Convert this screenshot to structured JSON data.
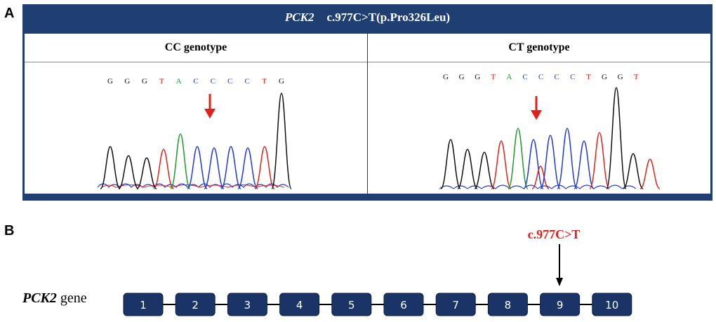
{
  "panel_a": {
    "letter": "A",
    "title_gene": "PCK2",
    "title_variant": "c.977C>T(p.Pro326Leu)",
    "left": {
      "header": "CC  genotype",
      "bases": [
        {
          "b": "G",
          "c": "#111111"
        },
        {
          "b": "G",
          "c": "#111111"
        },
        {
          "b": "G",
          "c": "#111111"
        },
        {
          "b": "T",
          "c": "#d9261c"
        },
        {
          "b": "A",
          "c": "#1e9a2d"
        },
        {
          "b": "C",
          "c": "#2339d0"
        },
        {
          "b": "C",
          "c": "#2339d0"
        },
        {
          "b": "C",
          "c": "#2339d0"
        },
        {
          "b": "C",
          "c": "#2339d0"
        },
        {
          "b": "T",
          "c": "#d9261c"
        },
        {
          "b": "G",
          "c": "#111111"
        }
      ]
    },
    "right": {
      "header": "CT  genotype",
      "bases": [
        {
          "b": "G",
          "c": "#111111"
        },
        {
          "b": "G",
          "c": "#111111"
        },
        {
          "b": "G",
          "c": "#111111"
        },
        {
          "b": "T",
          "c": "#d9261c"
        },
        {
          "b": "A",
          "c": "#1e9a2d"
        },
        {
          "b": "C",
          "c": "#2339d0"
        },
        {
          "b": "C",
          "c": "#2339d0"
        },
        {
          "b": "C",
          "c": "#2339d0"
        },
        {
          "b": "C",
          "c": "#2339d0"
        },
        {
          "b": "T",
          "c": "#d9261c"
        },
        {
          "b": "G",
          "c": "#111111"
        },
        {
          "b": "G",
          "c": "#111111"
        },
        {
          "b": "T",
          "c": "#d9261c"
        }
      ]
    },
    "colors": {
      "frame": "#1f3f72",
      "arrow": "#e0201b",
      "G": "#111111",
      "A": "#1e9a2d",
      "T": "#d9261c",
      "C": "#2339d0"
    }
  },
  "panel_b": {
    "letter": "B",
    "gene_name": "PCK2",
    "gene_suffix": "gene",
    "mutation_label": "c.977C>T",
    "mutation_exon": 9,
    "exons": [
      "1",
      "2",
      "3",
      "4",
      "5",
      "6",
      "7",
      "8",
      "9",
      "10"
    ],
    "colors": {
      "exon": "#1b3468",
      "mutation": "#e0201b"
    }
  }
}
